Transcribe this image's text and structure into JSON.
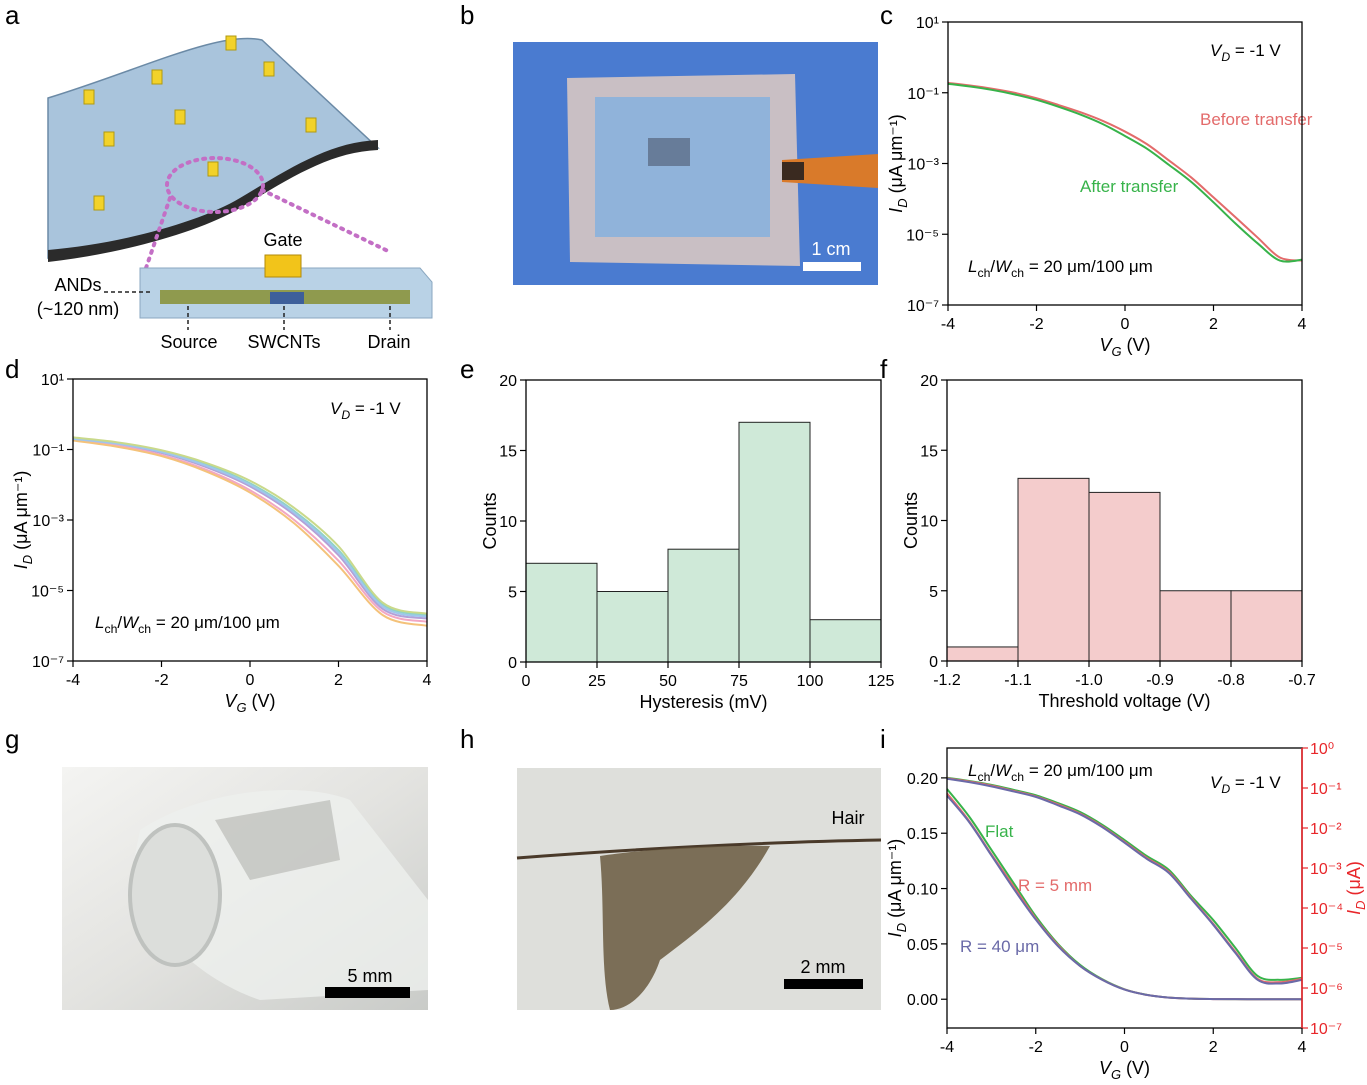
{
  "panel_letters": [
    "a",
    "b",
    "c",
    "d",
    "e",
    "f",
    "g",
    "h",
    "i"
  ],
  "diagram_a": {
    "labels": {
      "gate": "Gate",
      "ands": "ANDs",
      "thickness": "(~120 nm)",
      "source": "Source",
      "swcnts": "SWCNTs",
      "drain": "Drain"
    }
  },
  "photos": {
    "b": {
      "scale_bar": "1 cm"
    },
    "g": {
      "scale_bar": "5 mm"
    },
    "h": {
      "scale_bar": "2 mm",
      "label": "Hair"
    }
  },
  "chart_data": [
    {
      "type": "line",
      "ylog": true,
      "x": [
        -4,
        -3.5,
        -3,
        -2.5,
        -2,
        -1.5,
        -1,
        -0.5,
        0,
        0.5,
        1,
        1.5,
        2,
        2.5,
        3,
        3.5,
        4
      ],
      "series": [
        {
          "name": "Before transfer",
          "color": "#e36b6b",
          "values": [
            0.19,
            0.16,
            0.13,
            0.1,
            0.07,
            0.045,
            0.028,
            0.016,
            0.008,
            0.0035,
            0.0012,
            0.0004,
            0.00011,
            3e-05,
            8e-06,
            2.2e-06,
            1.8e-06
          ]
        },
        {
          "name": "After transfer",
          "color": "#37b34a",
          "values": [
            0.18,
            0.15,
            0.12,
            0.09,
            0.063,
            0.04,
            0.024,
            0.013,
            0.006,
            0.0026,
            0.0009,
            0.0003,
            8e-05,
            2e-05,
            5.5e-06,
            1.8e-06,
            1.9e-06
          ]
        }
      ],
      "xlim": [
        -4,
        4
      ],
      "xticks": [
        -4,
        -2,
        0,
        2,
        4
      ],
      "ylim": [
        1e-07,
        10
      ],
      "yticks": [
        {
          "value": 10,
          "label": "10¹"
        },
        {
          "value": 0.1,
          "label": "10⁻¹"
        },
        {
          "value": 0.001,
          "label": "10⁻³"
        },
        {
          "value": 1e-05,
          "label": "10⁻⁵"
        },
        {
          "value": 1e-07,
          "label": "10⁻⁷"
        }
      ],
      "xlabel": [
        {
          "text": "V"
        },
        {
          "text": "G",
          "sub": true
        },
        {
          "text": " (V)"
        }
      ],
      "ylabel": [
        {
          "text": "I"
        },
        {
          "text": "D",
          "sub": true
        },
        {
          "text": " (μA μm⁻¹)"
        }
      ],
      "annotations": [
        {
          "parts": [
            {
              "text": "V"
            },
            {
              "text": "D",
              "sub": true
            },
            {
              "text": " = -1 V"
            }
          ]
        },
        {
          "parts": [
            {
              "text": "L"
            },
            {
              "text": "ch",
              "sub": true
            },
            {
              "text": "/"
            },
            {
              "text": "W"
            },
            {
              "text": "ch",
              "sub": true
            },
            {
              "text": " = 20 μm/100 μm"
            }
          ]
        }
      ]
    },
    {
      "type": "line",
      "ylog": true,
      "x": [
        -4,
        -3,
        -2,
        -1,
        0,
        1,
        2,
        3,
        4
      ],
      "series": [
        {
          "color": "#b3a0d8",
          "values": [
            0.2,
            0.14,
            0.08,
            0.032,
            0.009,
            0.0014,
            0.0001,
            3e-06,
            1.6e-06
          ]
        },
        {
          "color": "#f2a7c3",
          "values": [
            0.19,
            0.13,
            0.07,
            0.027,
            0.007,
            0.001,
            7e-05,
            2.5e-06,
            1.3e-06
          ]
        },
        {
          "color": "#8fd3c4",
          "values": [
            0.21,
            0.15,
            0.09,
            0.038,
            0.011,
            0.0018,
            0.00014,
            4e-06,
            2e-06
          ]
        },
        {
          "color": "#f4c27a",
          "values": [
            0.18,
            0.12,
            0.065,
            0.024,
            0.006,
            0.0008,
            5e-05,
            2e-06,
            1e-06
          ]
        },
        {
          "color": "#9fc6ec",
          "values": [
            0.2,
            0.145,
            0.085,
            0.035,
            0.01,
            0.0016,
            0.00012,
            3.5e-06,
            1.8e-06
          ]
        },
        {
          "color": "#c9d98a",
          "values": [
            0.22,
            0.16,
            0.095,
            0.042,
            0.013,
            0.0022,
            0.00018,
            4.5e-06,
            2.2e-06
          ]
        }
      ],
      "xlim": [
        -4,
        4
      ],
      "xticks": [
        -4,
        -2,
        0,
        2,
        4
      ],
      "ylim": [
        1e-07,
        10
      ],
      "yticks": [
        {
          "value": 10,
          "label": "10¹"
        },
        {
          "value": 0.1,
          "label": "10⁻¹"
        },
        {
          "value": 0.001,
          "label": "10⁻³"
        },
        {
          "value": 1e-05,
          "label": "10⁻⁵"
        },
        {
          "value": 1e-07,
          "label": "10⁻⁷"
        }
      ],
      "xlabel": [
        {
          "text": "V"
        },
        {
          "text": "G",
          "sub": true
        },
        {
          "text": " (V)"
        }
      ],
      "ylabel": [
        {
          "text": "I"
        },
        {
          "text": "D",
          "sub": true
        },
        {
          "text": " (μA μm⁻¹)"
        }
      ],
      "annotations": [
        {
          "parts": [
            {
              "text": "V"
            },
            {
              "text": "D",
              "sub": true
            },
            {
              "text": " = -1 V"
            }
          ]
        },
        {
          "parts": [
            {
              "text": "L"
            },
            {
              "text": "ch",
              "sub": true
            },
            {
              "text": "/"
            },
            {
              "text": "W"
            },
            {
              "text": "ch",
              "sub": true
            },
            {
              "text": " = 20 μm/100 μm"
            }
          ]
        }
      ]
    },
    {
      "type": "histogram",
      "bins": [
        0,
        25,
        50,
        75,
        100,
        125
      ],
      "values": [
        7,
        5,
        8,
        17,
        3
      ],
      "color": "#cfe9d8",
      "xlim": [
        0,
        125
      ],
      "xticks": [
        0,
        25,
        50,
        75,
        100,
        125
      ],
      "ylim": [
        0,
        20
      ],
      "yticks": [
        0,
        5,
        10,
        15,
        20
      ],
      "xlabel": [
        {
          "text": "Hysteresis (mV)"
        }
      ],
      "ylabel": [
        {
          "text": "Counts"
        }
      ]
    },
    {
      "type": "histogram",
      "bins": [
        -1.2,
        -1.1,
        -1,
        -0.9,
        -0.8,
        -0.7
      ],
      "values": [
        1,
        13,
        12,
        5,
        5
      ],
      "color": "#f4cccc",
      "xlim": [
        -1.2,
        -0.7
      ],
      "xticks": [
        -1.2,
        -1.1,
        {
          "value": -1,
          "label": "-1.0"
        },
        -0.9,
        -0.8,
        -0.7
      ],
      "ylim": [
        0,
        20
      ],
      "yticks": [
        0,
        5,
        10,
        15,
        20
      ],
      "xlabel": [
        {
          "text": "Threshold voltage (V)"
        }
      ],
      "ylabel": [
        {
          "text": "Counts"
        }
      ]
    },
    {
      "type": "line",
      "y2log": true,
      "y2color": "#e8262a",
      "x": [
        -4,
        -3.5,
        -3,
        -2.5,
        -2,
        -1.5,
        -1,
        -0.5,
        0,
        0.5,
        1,
        1.5,
        2,
        2.5,
        3,
        3.5,
        4
      ],
      "series": [
        {
          "name": "Flat",
          "color": "#37b34a",
          "values": [
            0.19,
            0.165,
            0.135,
            0.105,
            0.075,
            0.05,
            0.031,
            0.018,
            0.009,
            0.004,
            0.0015,
            0.0005,
            0.00015,
            4e-05,
            1e-05,
            2e-06,
            2e-06
          ]
        },
        {
          "name": "R = 5 mm",
          "color": "#e36b6b",
          "values": [
            0.186,
            0.161,
            0.131,
            0.102,
            0.073,
            0.049,
            0.03,
            0.0176,
            0.0088,
            0.0039,
            0.00147,
            0.00049,
            0.000147,
            3.9e-05,
            9.8e-06,
            2e-06,
            2e-06
          ]
        },
        {
          "name": "R = 40 μm",
          "color": "#6a6aa8",
          "values": [
            0.184,
            0.16,
            0.13,
            0.1,
            0.072,
            0.048,
            0.03,
            0.0175,
            0.0087,
            0.0039,
            0.00146,
            0.00049,
            0.000146,
            3.9e-05,
            9.7e-06,
            2e-06,
            2e-06
          ]
        },
        {
          "color": "#37b34a",
          "axis": "y2",
          "values": [
            0.18,
            0.15,
            0.12,
            0.09,
            0.066,
            0.042,
            0.025,
            0.012,
            0.005,
            0.002,
            0.0009,
            0.0002,
            5e-05,
            1e-05,
            2e-06,
            1.6e-06,
            1.8e-06
          ]
        },
        {
          "color": "#e36b6b",
          "axis": "y2",
          "values": [
            0.175,
            0.145,
            0.115,
            0.085,
            0.062,
            0.039,
            0.023,
            0.011,
            0.0045,
            0.0018,
            0.0008,
            0.00018,
            4e-05,
            8e-06,
            1.7e-06,
            1.4e-06,
            1.7e-06
          ]
        },
        {
          "color": "#6a6aa8",
          "axis": "y2",
          "values": [
            0.17,
            0.14,
            0.11,
            0.082,
            0.06,
            0.037,
            0.022,
            0.0105,
            0.0043,
            0.0017,
            0.00075,
            0.00017,
            3.8e-05,
            7.5e-06,
            1.6e-06,
            1.3e-06,
            1.6e-06
          ]
        }
      ],
      "xlim": [
        -4,
        4
      ],
      "xticks": [
        -4,
        -2,
        0,
        2,
        4
      ],
      "ylim": [
        -0.026,
        0.227
      ],
      "yticks": [
        {
          "value": 0,
          "label": "0.00"
        },
        {
          "value": 0.05,
          "label": "0.05"
        },
        {
          "value": 0.1,
          "label": "0.10"
        },
        {
          "value": 0.15,
          "label": "0.15"
        },
        {
          "value": 0.2,
          "label": "0.20"
        }
      ],
      "y2lim": [
        1e-07,
        1
      ],
      "y2ticks": [
        {
          "value": 1,
          "label": "10⁰"
        },
        {
          "value": 0.1,
          "label": "10⁻¹"
        },
        {
          "value": 0.01,
          "label": "10⁻²"
        },
        {
          "value": 0.001,
          "label": "10⁻³"
        },
        {
          "value": 0.0001,
          "label": "10⁻⁴"
        },
        {
          "value": 1e-05,
          "label": "10⁻⁵"
        },
        {
          "value": 1e-06,
          "label": "10⁻⁶"
        },
        {
          "value": 1e-07,
          "label": "10⁻⁷"
        }
      ],
      "xlabel": [
        {
          "text": "V"
        },
        {
          "text": "G",
          "sub": true
        },
        {
          "text": " (V)"
        }
      ],
      "ylabel": [
        {
          "text": "I"
        },
        {
          "text": "D",
          "sub": true
        },
        {
          "text": " (μA μm⁻¹)"
        }
      ],
      "y2label": [
        {
          "text": "I"
        },
        {
          "text": "D",
          "sub": true
        },
        {
          "text": " (μA)"
        }
      ],
      "annotations": [
        {
          "parts": [
            {
              "text": "L"
            },
            {
              "text": "ch",
              "sub": true
            },
            {
              "text": "/"
            },
            {
              "text": "W"
            },
            {
              "text": "ch",
              "sub": true
            },
            {
              "text": " = 20 μm/100 μm"
            }
          ]
        },
        {
          "parts": [
            {
              "text": "V"
            },
            {
              "text": "D",
              "sub": true
            },
            {
              "text": " = -1 V"
            }
          ]
        }
      ]
    }
  ]
}
